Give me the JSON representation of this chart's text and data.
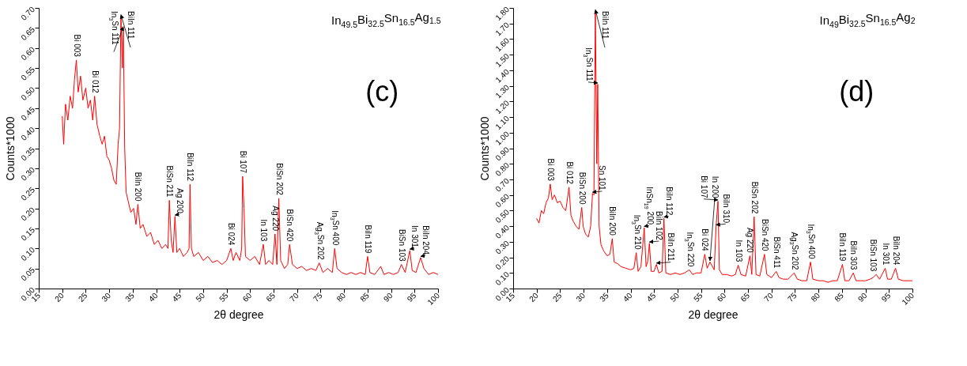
{
  "chart_data": [
    {
      "type": "line",
      "title": "In$_{49.5}$Bi$_{32.5}$Sn$_{16.5}$Ag$_{1.5}$",
      "xlabel": "2θ degree",
      "ylabel": "Counts*1000",
      "xlim": [
        15,
        100
      ],
      "xticks": [
        15,
        20,
        25,
        30,
        35,
        40,
        45,
        50,
        55,
        60,
        65,
        70,
        75,
        80,
        85,
        90,
        95,
        100
      ],
      "ylim": [
        0,
        0.7
      ],
      "yticks": [
        {
          "value": 0,
          "label": "0.00"
        },
        {
          "value": 0.05,
          "label": "0.05"
        },
        {
          "value": 0.1,
          "label": "0.10"
        },
        {
          "value": 0.15,
          "label": "0.15"
        },
        {
          "value": 0.2,
          "label": "0.20"
        },
        {
          "value": 0.25,
          "label": "0.25"
        },
        {
          "value": 0.3,
          "label": "0.30"
        },
        {
          "value": 0.35,
          "label": "0.35"
        },
        {
          "value": 0.4,
          "label": "0.40"
        },
        {
          "value": 0.45,
          "label": "0.45"
        },
        {
          "value": 0.5,
          "label": "0.50"
        },
        {
          "value": 0.55,
          "label": "0.55"
        },
        {
          "value": 0.6,
          "label": "0.60"
        },
        {
          "value": 0.65,
          "label": "0.65"
        },
        {
          "value": 0.7,
          "label": "0.70"
        }
      ],
      "x": [
        20,
        20.3,
        20.7,
        21.2,
        21.7,
        22.2,
        22.6,
        23.0,
        23.4,
        23.9,
        24.4,
        25.0,
        25.5,
        26.0,
        26.5,
        26.9,
        27.4,
        28.0,
        28.5,
        29.0,
        29.5,
        30.0,
        30.5,
        31.0,
        31.5,
        31.9,
        32.2,
        32.5,
        32.8,
        33.0,
        33.3,
        33.6,
        34.0,
        34.6,
        35.2,
        35.7,
        36.1,
        36.6,
        37.2,
        38.0,
        38.8,
        39.6,
        40.4,
        41.2,
        42.0,
        42.5,
        42.8,
        43.2,
        43.6,
        44.0,
        44.4,
        45.0,
        45.8,
        46.6,
        47.0,
        47.2,
        47.5,
        48.0,
        49.0,
        50.0,
        51.0,
        52.0,
        53.0,
        54.0,
        55.0,
        55.9,
        56.4,
        57.0,
        57.8,
        58.2,
        58.4,
        58.7,
        59.0,
        60.0,
        61.0,
        62.0,
        62.8,
        63.3,
        64.0,
        64.8,
        65.3,
        65.7,
        66.1,
        66.5,
        67.3,
        68.0,
        68.4,
        69.0,
        70.0,
        71.0,
        72.0,
        73.0,
        74.0,
        74.7,
        75.5,
        76.5,
        77.5,
        78.0,
        78.5,
        79.5,
        80.5,
        81.5,
        82.5,
        83.5,
        84.5,
        85.0,
        85.5,
        86.5,
        87.8,
        88.5,
        89.5,
        90.5,
        91.5,
        92.2,
        93.0,
        94.0,
        94.5,
        95.3,
        96.3,
        97.0,
        98.0,
        99.0,
        100
      ],
      "series": [
        {
          "color": "#ff0000",
          "values": [
            0.43,
            0.36,
            0.46,
            0.42,
            0.48,
            0.45,
            0.52,
            0.57,
            0.49,
            0.53,
            0.47,
            0.5,
            0.45,
            0.47,
            0.42,
            0.48,
            0.41,
            0.38,
            0.36,
            0.38,
            0.33,
            0.32,
            0.3,
            0.27,
            0.26,
            0.36,
            0.4,
            0.68,
            0.55,
            0.65,
            0.35,
            0.24,
            0.22,
            0.19,
            0.2,
            0.16,
            0.21,
            0.15,
            0.16,
            0.13,
            0.14,
            0.11,
            0.12,
            0.1,
            0.11,
            0.1,
            0.22,
            0.12,
            0.09,
            0.18,
            0.09,
            0.1,
            0.08,
            0.09,
            0.1,
            0.26,
            0.1,
            0.08,
            0.09,
            0.07,
            0.08,
            0.065,
            0.07,
            0.06,
            0.07,
            0.1,
            0.07,
            0.09,
            0.07,
            0.1,
            0.28,
            0.2,
            0.08,
            0.07,
            0.08,
            0.06,
            0.11,
            0.06,
            0.07,
            0.06,
            0.136,
            0.06,
            0.225,
            0.07,
            0.05,
            0.06,
            0.11,
            0.06,
            0.05,
            0.055,
            0.045,
            0.05,
            0.045,
            0.064,
            0.04,
            0.05,
            0.04,
            0.1,
            0.05,
            0.04,
            0.035,
            0.04,
            0.035,
            0.04,
            0.035,
            0.08,
            0.04,
            0.035,
            0.055,
            0.035,
            0.04,
            0.035,
            0.04,
            0.06,
            0.04,
            0.095,
            0.045,
            0.04,
            0.077,
            0.05,
            0.035,
            0.04,
            0.035
          ]
        }
      ],
      "annotations": [
        {
          "text": "Bi 003",
          "x": 23.0,
          "y": 0.57
        },
        {
          "text": "Bi 012",
          "x": 26.9,
          "y": 0.48
        },
        {
          "text": "BiIn 111",
          "x": 32.5,
          "y": 0.68
        },
        {
          "text": "In$_{3}$Sn 111",
          "x": 33.0,
          "y": 0.65
        },
        {
          "text": "BiIn 200",
          "x": 36.1,
          "y": 0.21
        },
        {
          "text": "BiSn 211",
          "x": 42.8,
          "y": 0.22
        },
        {
          "text": "Ag 200",
          "x": 44.0,
          "y": 0.18
        },
        {
          "text": "BiIn 112",
          "x": 47.2,
          "y": 0.26
        },
        {
          "text": "Bi 024",
          "x": 55.9,
          "y": 0.1
        },
        {
          "text": "Bi 107",
          "x": 58.4,
          "y": 0.28
        },
        {
          "text": "In 103",
          "x": 62.8,
          "y": 0.11
        },
        {
          "text": "Ag 220",
          "x": 65.3,
          "y": 0.136
        },
        {
          "text": "BiSn 202",
          "x": 66.1,
          "y": 0.225
        },
        {
          "text": "BiSn 420",
          "x": 68.4,
          "y": 0.11
        },
        {
          "text": "Ag$_{3}$Sn 202",
          "x": 74.7,
          "y": 0.064
        },
        {
          "text": "In$_{3}$Sn 400",
          "x": 78.0,
          "y": 0.1
        },
        {
          "text": "BiIn 119",
          "x": 85.0,
          "y": 0.08
        },
        {
          "text": "BiSn 103",
          "x": 92.2,
          "y": 0.06
        },
        {
          "text": "In 301",
          "x": 94.0,
          "y": 0.095
        },
        {
          "text": "BiIn 204",
          "x": 96.3,
          "y": 0.077
        },
        "(c)"
      ]
    },
    {
      "type": "line",
      "title": "In$_{49}$Bi$_{32.5}$Sn$_{16.5}$Ag$_{2}$",
      "xlabel": "2θ degree",
      "ylabel": "Counts*1000",
      "xlim": [
        15,
        100
      ],
      "xticks": [
        15,
        20,
        25,
        30,
        35,
        40,
        45,
        50,
        55,
        60,
        65,
        70,
        75,
        80,
        85,
        90,
        95,
        100
      ],
      "ylim": [
        0,
        1.8
      ],
      "yticks": [
        {
          "value": 0,
          "label": "0.00"
        },
        {
          "value": 0.1,
          "label": "0.10"
        },
        {
          "value": 0.2,
          "label": "0.20"
        },
        {
          "value": 0.3,
          "label": "0.30"
        },
        {
          "value": 0.4,
          "label": "0.40"
        },
        {
          "value": 0.5,
          "label": "0.50"
        },
        {
          "value": 0.6,
          "label": "0.60"
        },
        {
          "value": 0.7,
          "label": "0.70"
        },
        {
          "value": 0.8,
          "label": "0.80"
        },
        {
          "value": 0.9,
          "label": "0.90"
        },
        {
          "value": 1.0,
          "label": "1.00"
        },
        {
          "value": 1.1,
          "label": "1.10"
        },
        {
          "value": 1.2,
          "label": "1.20"
        },
        {
          "value": 1.3,
          "label": "1.30"
        },
        {
          "value": 1.4,
          "label": "1.40"
        },
        {
          "value": 1.5,
          "label": "1.50"
        },
        {
          "value": 1.6,
          "label": "1.60"
        },
        {
          "value": 1.7,
          "label": "1.70"
        },
        {
          "value": 1.8,
          "label": "1.80"
        }
      ],
      "x": [
        20,
        20.5,
        21.0,
        21.5,
        22.0,
        22.5,
        22.9,
        23.3,
        23.8,
        24.4,
        25.0,
        25.6,
        26.2,
        26.9,
        27.3,
        27.8,
        28.4,
        29.0,
        29.6,
        29.9,
        30.4,
        31.0,
        31.5,
        31.9,
        32.2,
        32.5,
        32.8,
        33.0,
        33.3,
        33.7,
        34.3,
        35.0,
        35.6,
        36.1,
        36.5,
        37.2,
        38.0,
        39.0,
        40.0,
        40.7,
        41.2,
        41.6,
        42.2,
        42.9,
        43.3,
        43.7,
        44.0,
        44.4,
        45.0,
        45.5,
        46.0,
        46.7,
        47.1,
        47.5,
        48.5,
        49.5,
        50.5,
        51.5,
        52.5,
        53.2,
        54.0,
        55.0,
        55.8,
        56.3,
        56.9,
        57.8,
        58.2,
        58.6,
        58.9,
        59.5,
        60.5,
        61.5,
        62.3,
        62.9,
        63.5,
        64.5,
        65.4,
        65.8,
        66.3,
        66.7,
        67.5,
        68.5,
        69.0,
        70.0,
        71.0,
        71.6,
        72.5,
        73.5,
        74.8,
        75.5,
        76.5,
        77.5,
        78.3,
        78.8,
        80.0,
        81.0,
        82.0,
        83.0,
        84.0,
        85.1,
        85.6,
        86.5,
        87.4,
        88.0,
        89.0,
        90.0,
        91.0,
        91.6,
        92.3,
        93.0,
        94.2,
        94.7,
        95.5,
        96.4,
        97.0,
        98.0,
        99.0,
        100
      ],
      "series": [
        {
          "color": "#ff0000",
          "values": [
            0.45,
            0.42,
            0.5,
            0.48,
            0.55,
            0.58,
            0.67,
            0.57,
            0.6,
            0.55,
            0.56,
            0.52,
            0.5,
            0.65,
            0.47,
            0.43,
            0.4,
            0.38,
            0.52,
            0.4,
            0.35,
            0.33,
            0.4,
            0.61,
            0.6,
            1.78,
            0.8,
            1.31,
            0.4,
            0.28,
            0.24,
            0.21,
            0.22,
            0.32,
            0.17,
            0.16,
            0.14,
            0.13,
            0.12,
            0.13,
            0.23,
            0.11,
            0.14,
            0.39,
            0.14,
            0.18,
            0.29,
            0.11,
            0.11,
            0.155,
            0.1,
            0.11,
            0.45,
            0.1,
            0.09,
            0.1,
            0.09,
            0.1,
            0.12,
            0.09,
            0.1,
            0.1,
            0.22,
            0.13,
            0.17,
            0.12,
            0.4,
            0.56,
            0.12,
            0.09,
            0.09,
            0.08,
            0.09,
            0.15,
            0.09,
            0.08,
            0.21,
            0.09,
            0.46,
            0.09,
            0.08,
            0.22,
            0.09,
            0.07,
            0.11,
            0.07,
            0.06,
            0.06,
            0.1,
            0.06,
            0.05,
            0.05,
            0.17,
            0.06,
            0.05,
            0.05,
            0.04,
            0.05,
            0.05,
            0.155,
            0.05,
            0.05,
            0.1,
            0.05,
            0.05,
            0.05,
            0.06,
            0.07,
            0.09,
            0.06,
            0.13,
            0.06,
            0.06,
            0.13,
            0.06,
            0.05,
            0.05,
            0.05
          ]
        }
      ],
      "annotations": [
        {
          "text": "Bi 003",
          "x": 22.9,
          "y": 0.67
        },
        {
          "text": "Bi 012",
          "x": 26.9,
          "y": 0.65
        },
        {
          "text": "BiSn 200",
          "x": 29.6,
          "y": 0.52
        },
        {
          "text": "Sn 101",
          "x": 31.9,
          "y": 0.61
        },
        {
          "text": "BiIn 111",
          "x": 32.5,
          "y": 1.78
        },
        {
          "text": "In$_{3}$Sn 111",
          "x": 33.0,
          "y": 1.31
        },
        {
          "text": "BiIn 200",
          "x": 36.1,
          "y": 0.32
        },
        {
          "text": "In$_{3}$Sn 210",
          "x": 41.2,
          "y": 0.23
        },
        {
          "text": "InSn$_{19}$ 200",
          "x": 42.9,
          "y": 0.39
        },
        {
          "text": "BiIn 102",
          "x": 44.0,
          "y": 0.29
        },
        {
          "text": "BiIn 211",
          "x": 45.5,
          "y": 0.155
        },
        {
          "text": "BiIn 112",
          "x": 47.1,
          "y": 0.45
        },
        {
          "text": "In$_{3}$Sn 220",
          "x": 52.5,
          "y": 0.12
        },
        {
          "text": "Bi 024",
          "x": 55.8,
          "y": 0.22
        },
        {
          "text": "In 200",
          "x": 56.9,
          "y": 0.17
        },
        {
          "text": "BiIn 310",
          "x": 58.2,
          "y": 0.4
        },
        {
          "text": "Bi 107",
          "x": 58.6,
          "y": 0.56
        },
        {
          "text": "In 103",
          "x": 62.9,
          "y": 0.15
        },
        {
          "text": "Ag 220",
          "x": 65.4,
          "y": 0.21
        },
        {
          "text": "BiSn 202",
          "x": 66.3,
          "y": 0.46
        },
        {
          "text": "BiSn 420",
          "x": 68.5,
          "y": 0.22
        },
        {
          "text": "BiSn 411",
          "x": 71.0,
          "y": 0.11
        },
        {
          "text": "Ag$_{3}$Sn 202",
          "x": 74.8,
          "y": 0.1
        },
        {
          "text": "In$_{3}$Sn 400",
          "x": 78.3,
          "y": 0.17
        },
        {
          "text": "BiIn 119",
          "x": 85.1,
          "y": 0.155
        },
        {
          "text": "BiIn 303",
          "x": 87.4,
          "y": 0.1
        },
        {
          "text": "BiSn 103",
          "x": 91.6,
          "y": 0.07
        },
        {
          "text": "In 301",
          "x": 94.2,
          "y": 0.13
        },
        {
          "text": "BiIn 204",
          "x": 96.4,
          "y": 0.13
        },
        "(d)"
      ]
    }
  ]
}
